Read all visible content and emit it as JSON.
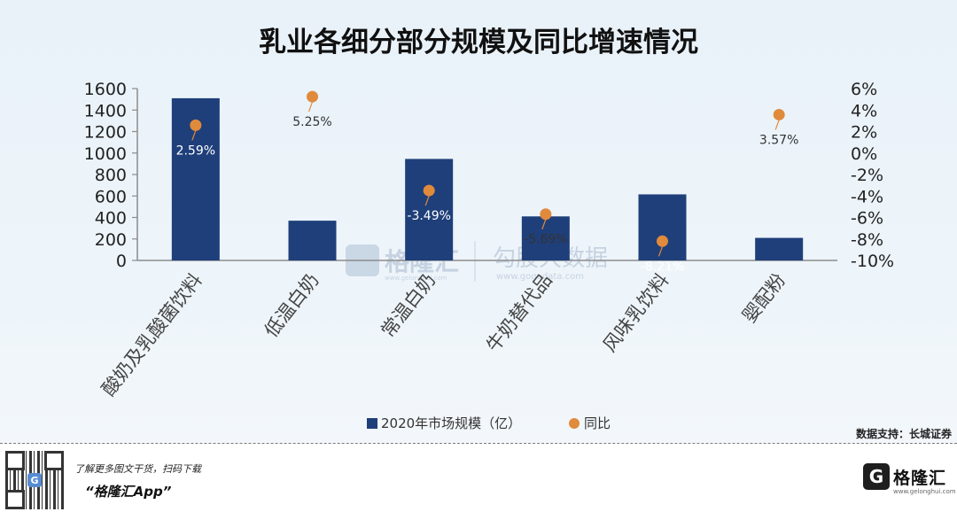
{
  "chart_data": {
    "type": "bar",
    "title": "乳业各细分部分规模及同比增速情况",
    "categories": [
      "酸奶及乳酸菌饮料",
      "低温白奶",
      "常温白奶",
      "牛奶替代品",
      "风味乳饮料",
      "婴配粉"
    ],
    "series": [
      {
        "name": "2020年市场规模（亿）",
        "type": "bar",
        "axis": "left",
        "values": [
          1510,
          370,
          945,
          410,
          615,
          210
        ]
      },
      {
        "name": "同比",
        "type": "scatter",
        "axis": "right",
        "values": [
          2.59,
          5.25,
          -3.49,
          -5.69,
          -8.21,
          3.57
        ]
      }
    ],
    "point_labels": [
      "2.59%",
      "5.25%",
      "-3.49%",
      "-5.69%",
      "-8.21%",
      "3.57%"
    ],
    "left_axis": {
      "ylim": [
        0,
        1600
      ],
      "ticks": [
        "0",
        "200",
        "400",
        "600",
        "800",
        "1000",
        "1200",
        "1400",
        "1600"
      ]
    },
    "right_axis": {
      "ylim": [
        -10,
        6
      ],
      "ticks": [
        "-10%",
        "-8%",
        "-6%",
        "-4%",
        "-2%",
        "0%",
        "2%",
        "4%",
        "6%"
      ]
    },
    "legend_position": "bottom",
    "colors": {
      "bar": "#1f3f7a",
      "point": "#e08a3c",
      "axis": "#8c8c8c"
    }
  },
  "watermark": {
    "brand": "格隆汇",
    "brand_url": "www.gelonghui.com",
    "brand2": "勾股大数据",
    "brand2_url": "www.gogudata.com"
  },
  "source_note": "数据支持：长城证券",
  "footer": {
    "line1": "了解更多图文干货，扫码下载",
    "line2": "“格隆汇App”",
    "brand": "格隆汇",
    "brand_sub": "www.gelonghui.com"
  }
}
